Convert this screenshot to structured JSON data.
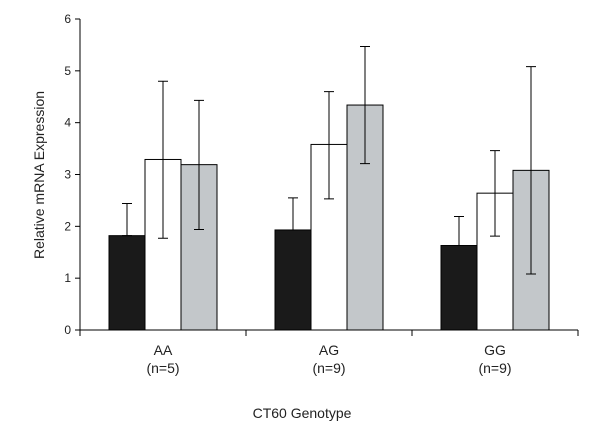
{
  "chart_data": {
    "type": "bar",
    "categories": [
      "AA",
      "AG",
      "GG"
    ],
    "category_sublabels": [
      "(n=5)",
      "(n=9)",
      "(n=9)"
    ],
    "xlabel": "CT60 Genotype",
    "ylabel": "Relative mRNA Expression",
    "ylim": [
      0,
      6
    ],
    "yticks": [
      0,
      1,
      2,
      3,
      4,
      5,
      6
    ],
    "grid": false,
    "legend": "none",
    "series": [
      {
        "color": "#1a1a1a",
        "values": [
          1.82,
          1.93,
          1.63
        ],
        "err_low": [
          1.82,
          1.93,
          1.63
        ],
        "err_high": [
          2.44,
          2.55,
          2.19
        ]
      },
      {
        "color": "#ffffff",
        "values": [
          3.29,
          3.58,
          2.64
        ],
        "err_low": [
          1.77,
          2.53,
          1.81
        ],
        "err_high": [
          4.8,
          4.6,
          3.46
        ]
      },
      {
        "color": "#c3c7ca",
        "values": [
          3.19,
          4.34,
          3.08
        ],
        "err_low": [
          1.94,
          3.21,
          1.08
        ],
        "err_high": [
          4.43,
          5.47,
          5.08
        ]
      }
    ]
  }
}
